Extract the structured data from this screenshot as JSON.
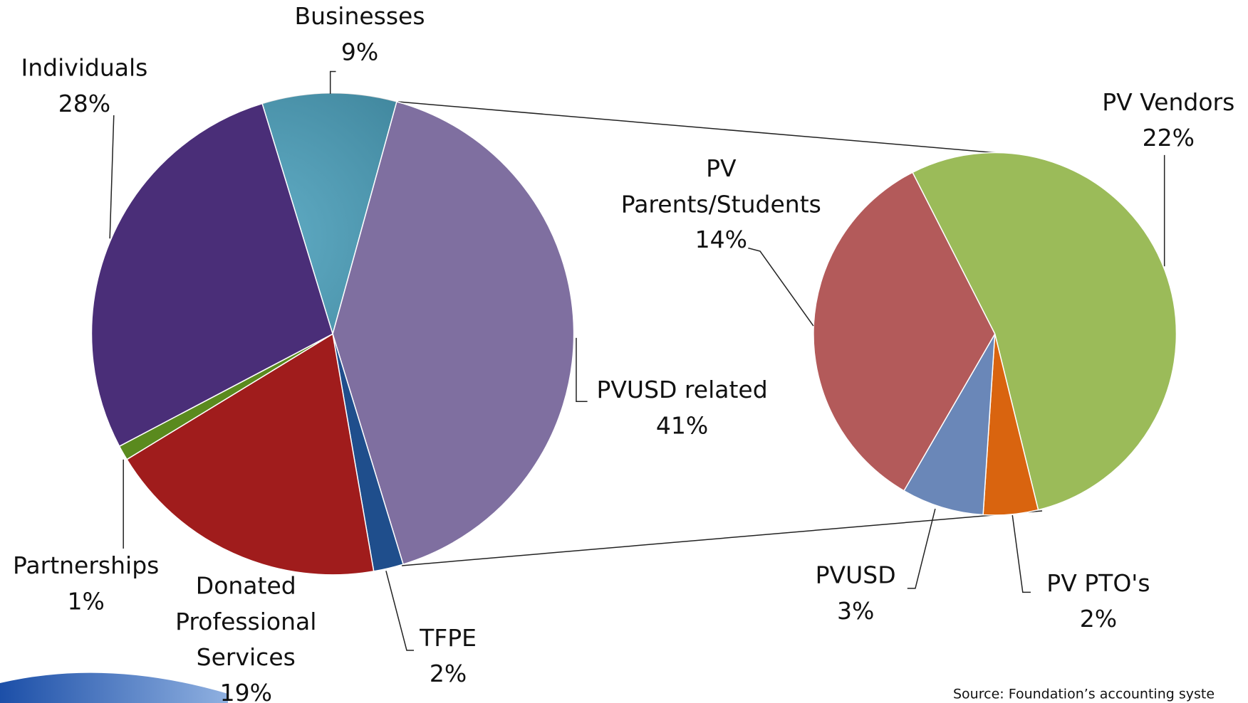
{
  "chart_data": [
    {
      "type": "pie",
      "categories": [
        "Businesses",
        "PVUSD related",
        "TFPE",
        "Donated Professional Services",
        "Partnerships",
        "Individuals"
      ],
      "values": [
        9,
        41,
        2,
        19,
        1,
        28
      ],
      "value_labels": [
        "9%",
        "41%",
        "2%",
        "19%",
        "1%",
        "28%"
      ],
      "colors": [
        "#2a8fb0",
        "#7f6fa0",
        "#1f4e8c",
        "#a01c1c",
        "#5a8a1e",
        "#4a2e78"
      ]
    },
    {
      "type": "pie",
      "categories": [
        "PV Vendors",
        "PV PTO's",
        "PVUSD",
        "PV Parents/Students"
      ],
      "values": [
        22,
        2,
        3,
        14
      ],
      "value_labels": [
        "22%",
        "2%",
        "3%",
        "14%"
      ],
      "colors": [
        "#9bbb59",
        "#d9640f",
        "#6a87b8",
        "#b35a5a"
      ]
    }
  ],
  "source": "Source:  Foundation’s accounting syste"
}
